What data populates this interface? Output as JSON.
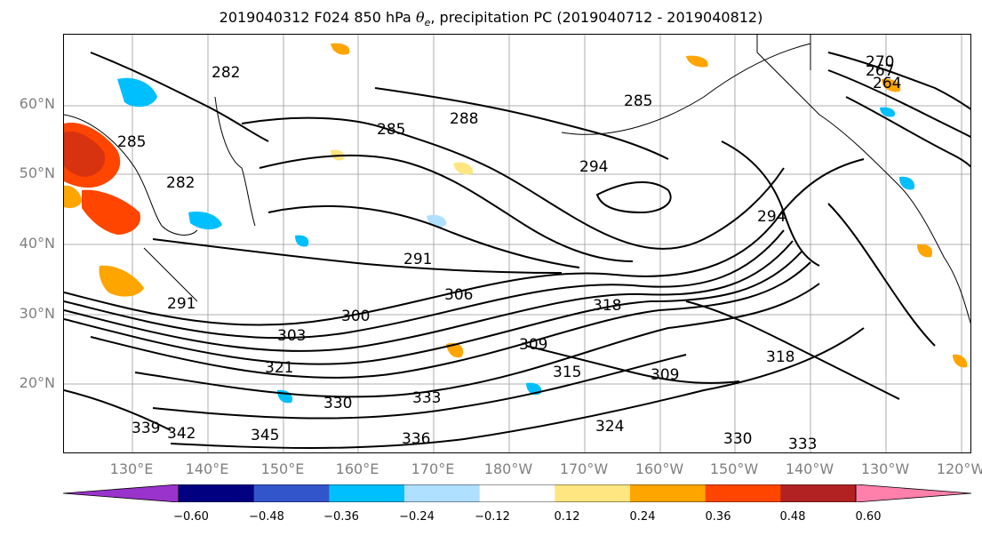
{
  "title": {
    "prefix": "2019040312 F024 850 hPa ",
    "theta": "θ",
    "sub": "e",
    "suffix": ", precipitation PC (2019040712 - 2019040812)"
  },
  "lat_labels": [
    "60°N",
    "50°N",
    "40°N",
    "30°N",
    "20°N"
  ],
  "lon_labels": [
    "130°E",
    "140°E",
    "150°E",
    "160°E",
    "170°E",
    "180°W",
    "170°W",
    "160°W",
    "150°W",
    "140°W",
    "130°W",
    "120°W"
  ],
  "contour_labels": [
    "282",
    "285",
    "288",
    "294",
    "285",
    "282",
    "285",
    "291",
    "306",
    "300",
    "303",
    "318",
    "309",
    "315",
    "309",
    "318",
    "294",
    "291",
    "270",
    "267",
    "264",
    "342",
    "345",
    "339",
    "333",
    "330",
    "336",
    "324",
    "330",
    "333",
    "321"
  ],
  "colorbar": {
    "colors": [
      "#9933cc",
      "#000080",
      "#3355cc",
      "#00bfff",
      "#b0e0ff",
      "#ffffff",
      "#ffe680",
      "#ffa500",
      "#ff4500",
      "#b22222",
      "#ff80aa"
    ],
    "tick_labels": [
      "−0.60",
      "−0.48",
      "−0.36",
      "−0.24",
      "−0.12",
      "0.12",
      "0.24",
      "0.36",
      "0.48",
      "0.60"
    ]
  }
}
